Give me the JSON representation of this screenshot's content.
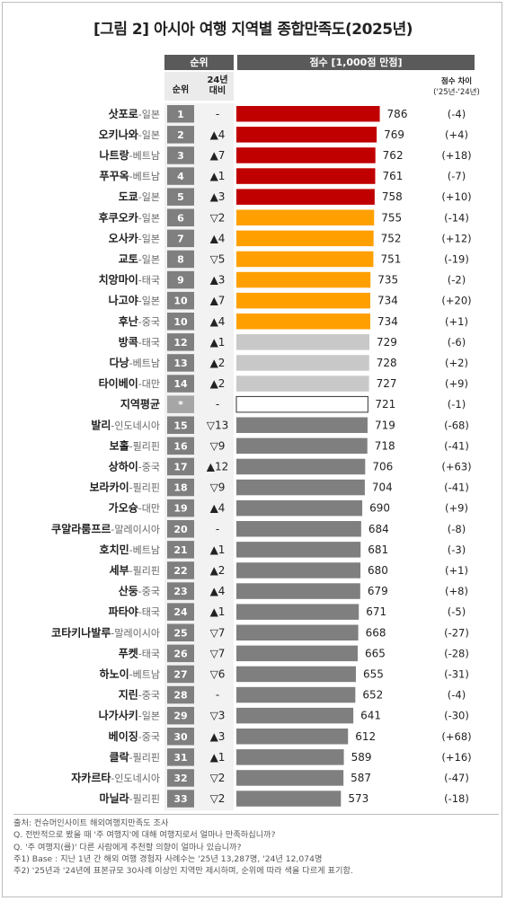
{
  "title": "[그림 2] 아시아 여행 지역별 종합만족도(2025년)",
  "headers": {
    "rank_group": "순위",
    "rank": "순위",
    "vs24_line1": "24년",
    "vs24_line2": "대비",
    "score": "점수 [1,000점 만점]",
    "diff_line1": "점수 차이",
    "diff_line2": "('25년-'24년)"
  },
  "colors": {
    "red": "#c00000",
    "orange": "#ffa000",
    "lightgray": "#c8c8c8",
    "gray": "#7f7f7f",
    "average": "#ffffff",
    "rank_box": "#7f7f7f",
    "rank_box_avg": "#a6a6a6"
  },
  "chart_data": {
    "type": "bar",
    "orientation": "horizontal",
    "title": "[그림 2] 아시아 여행 지역별 종합만족도(2025년)",
    "value_axis_label": "점수 [1,000점 만점]",
    "categories": [
      "삿포로",
      "오키나와",
      "나트랑",
      "푸꾸옥",
      "도쿄",
      "후쿠오카",
      "오사카",
      "교토",
      "치앙마이",
      "나고야",
      "후난",
      "방콕",
      "다낭",
      "타이베이",
      "지역평균",
      "발리",
      "보홀",
      "상하이",
      "보라카이",
      "가오슝",
      "쿠알라룸프르",
      "호치민",
      "세부",
      "산둥",
      "파타야",
      "코타키나발루",
      "푸켓",
      "하노이",
      "지린",
      "나가사키",
      "베이징",
      "클락",
      "자카르타",
      "마닐라"
    ],
    "rows": [
      {
        "city": "삿포로",
        "country": "-일본",
        "rank": "1",
        "change": "-",
        "score": 786,
        "diff": "(-4)",
        "tier": "red"
      },
      {
        "city": "오키나와",
        "country": "-일본",
        "rank": "2",
        "change": "▲4",
        "score": 769,
        "diff": "(+4)",
        "tier": "red"
      },
      {
        "city": "나트랑",
        "country": "-베트남",
        "rank": "3",
        "change": "▲7",
        "score": 762,
        "diff": "(+18)",
        "tier": "red"
      },
      {
        "city": "푸꾸옥",
        "country": "-베트남",
        "rank": "4",
        "change": "▲1",
        "score": 761,
        "diff": "(-7)",
        "tier": "red"
      },
      {
        "city": "도쿄",
        "country": "-일본",
        "rank": "5",
        "change": "▲3",
        "score": 758,
        "diff": "(+10)",
        "tier": "red"
      },
      {
        "city": "후쿠오카",
        "country": "-일본",
        "rank": "6",
        "change": "▽2",
        "score": 755,
        "diff": "(-14)",
        "tier": "orange"
      },
      {
        "city": "오사카",
        "country": "-일본",
        "rank": "7",
        "change": "▲4",
        "score": 752,
        "diff": "(+12)",
        "tier": "orange"
      },
      {
        "city": "교토",
        "country": "-일본",
        "rank": "8",
        "change": "▽5",
        "score": 751,
        "diff": "(-19)",
        "tier": "orange"
      },
      {
        "city": "치앙마이",
        "country": "-태국",
        "rank": "9",
        "change": "▲3",
        "score": 735,
        "diff": "(-2)",
        "tier": "orange"
      },
      {
        "city": "나고야",
        "country": "-일본",
        "rank": "10",
        "change": "▲7",
        "score": 734,
        "diff": "(+20)",
        "tier": "orange"
      },
      {
        "city": "후난",
        "country": "-중국",
        "rank": "10",
        "change": "▲4",
        "score": 734,
        "diff": "(+1)",
        "tier": "orange"
      },
      {
        "city": "방콕",
        "country": "-태국",
        "rank": "12",
        "change": "▲1",
        "score": 729,
        "diff": "(-6)",
        "tier": "lightgray"
      },
      {
        "city": "다낭",
        "country": "-베트남",
        "rank": "13",
        "change": "▲2",
        "score": 728,
        "diff": "(+2)",
        "tier": "lightgray"
      },
      {
        "city": "타이베이",
        "country": "-대만",
        "rank": "14",
        "change": "▲2",
        "score": 727,
        "diff": "(+9)",
        "tier": "lightgray"
      },
      {
        "city": "지역평균",
        "country": "",
        "rank": "*",
        "change": "-",
        "score": 721,
        "diff": "(-1)",
        "tier": "average"
      },
      {
        "city": "발리",
        "country": "-인도네시아",
        "rank": "15",
        "change": "▽13",
        "score": 719,
        "diff": "(-68)",
        "tier": "gray"
      },
      {
        "city": "보홀",
        "country": "-필리핀",
        "rank": "16",
        "change": "▽9",
        "score": 718,
        "diff": "(-41)",
        "tier": "gray"
      },
      {
        "city": "상하이",
        "country": "-중국",
        "rank": "17",
        "change": "▲12",
        "score": 706,
        "diff": "(+63)",
        "tier": "gray"
      },
      {
        "city": "보라카이",
        "country": "-필리핀",
        "rank": "18",
        "change": "▽9",
        "score": 704,
        "diff": "(-41)",
        "tier": "gray"
      },
      {
        "city": "가오슝",
        "country": "-대만",
        "rank": "19",
        "change": "▲4",
        "score": 690,
        "diff": "(+9)",
        "tier": "gray"
      },
      {
        "city": "쿠알라룸프르",
        "country": "-말레이시아",
        "rank": "20",
        "change": "-",
        "score": 684,
        "diff": "(-8)",
        "tier": "gray"
      },
      {
        "city": "호치민",
        "country": "-베트남",
        "rank": "21",
        "change": "▲1",
        "score": 681,
        "diff": "(-3)",
        "tier": "gray"
      },
      {
        "city": "세부",
        "country": "-필리핀",
        "rank": "22",
        "change": "▲2",
        "score": 680,
        "diff": "(+1)",
        "tier": "gray"
      },
      {
        "city": "산둥",
        "country": "-중국",
        "rank": "23",
        "change": "▲4",
        "score": 679,
        "diff": "(+8)",
        "tier": "gray"
      },
      {
        "city": "파타야",
        "country": "-태국",
        "rank": "24",
        "change": "▲1",
        "score": 671,
        "diff": "(-5)",
        "tier": "gray"
      },
      {
        "city": "코타키나발루",
        "country": "-말레이시아",
        "rank": "25",
        "change": "▽7",
        "score": 668,
        "diff": "(-27)",
        "tier": "gray"
      },
      {
        "city": "푸켓",
        "country": "-태국",
        "rank": "26",
        "change": "▽7",
        "score": 665,
        "diff": "(-28)",
        "tier": "gray"
      },
      {
        "city": "하노이",
        "country": "-베트남",
        "rank": "27",
        "change": "▽6",
        "score": 655,
        "diff": "(-31)",
        "tier": "gray"
      },
      {
        "city": "지린",
        "country": "-중국",
        "rank": "28",
        "change": "-",
        "score": 652,
        "diff": "(-4)",
        "tier": "gray"
      },
      {
        "city": "나가사키",
        "country": "-일본",
        "rank": "29",
        "change": "▽3",
        "score": 641,
        "diff": "(-30)",
        "tier": "gray"
      },
      {
        "city": "베이징",
        "country": "-중국",
        "rank": "30",
        "change": "▲3",
        "score": 612,
        "diff": "(+68)",
        "tier": "gray"
      },
      {
        "city": "클락",
        "country": "-필리핀",
        "rank": "31",
        "change": "▲1",
        "score": 589,
        "diff": "(+16)",
        "tier": "gray"
      },
      {
        "city": "자카르타",
        "country": "-인도네시아",
        "rank": "32",
        "change": "▽2",
        "score": 587,
        "diff": "(-47)",
        "tier": "gray"
      },
      {
        "city": "마닐라",
        "country": "-필리핀",
        "rank": "33",
        "change": "▽2",
        "score": 573,
        "diff": "(-18)",
        "tier": "gray"
      }
    ]
  },
  "notes": [
    "출처: 컨슈머인사이트 해외여행지만족도 조사",
    "Q. 전반적으로 봤을 때 '주 여행지'에 대해 여행지로서 얼마나 만족하십니까?",
    "Q. '주 여행지(를)' 다른 사람에게 추천할 의향이 얼마나 있습니까?",
    "주1) Base : 지난 1년 간 해외 여행 경험자 사례수는 '25년 13,287명, '24년 12,074명",
    "주2) '25년과 '24년에 표본규모 30사례 이상인 지역만 제시하며, 순위에 따라 색을 다르게 표기함."
  ]
}
